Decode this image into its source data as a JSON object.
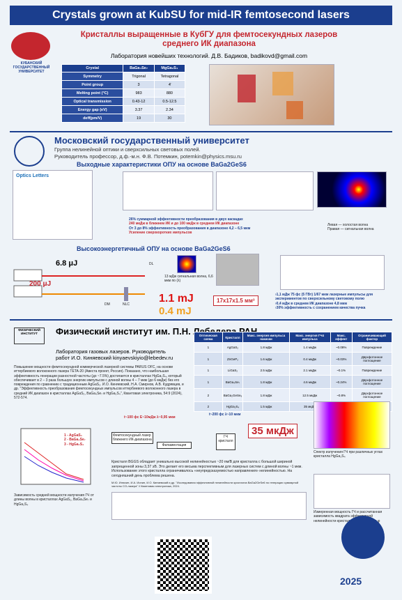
{
  "header": {
    "title": "Crystals grown at KubSU for mid-IR femtosecond lasers"
  },
  "kubsu": {
    "logo": "КУБАНСКИЙ ГОСУДАРСТВЕННЫЙ УНИВЕРСИТЕТ",
    "title": "Кристаллы выращенные в КубГУ для фемтосекундных лазеров среднего ИК диапазона",
    "lab": "Лаборатория новейших технологий. Д.В. Бадиков, badikovd@gmail.com",
    "table": {
      "header": [
        "Crystal",
        "BaGa₄Se₇",
        "MgGa₂S₄"
      ],
      "rows": [
        [
          "Symmetry",
          "Trigonal",
          "Tetragonal"
        ],
        [
          "Point group",
          "3",
          "4̄"
        ],
        [
          "Melting point (°C)",
          "983",
          "880"
        ],
        [
          "Optical transmission",
          "0.43-12",
          "0.5-12.5"
        ],
        [
          "Energy gap (eV)",
          "3.37",
          "2.34"
        ],
        [
          "deff(pm/V)",
          "19",
          "30"
        ]
      ]
    }
  },
  "msu": {
    "title": "Московский государственный университет",
    "subtitle": "Группа нелинейной оптики и сверхсильных световых полей.",
    "head": "Руководитель профессор, д.ф.-м.н. Ф.В. Потемкин, potemkin@physics.msu.ru",
    "section1": "Выходные характеристики ОПУ на основе BaGa2GeS6",
    "journal": "Optics Letters",
    "bullets": [
      "26% суммарной эффективности преобразования в двух каскадах",
      "240 мкДж в ближнем ИК и до 100 мкДж в среднем ИК диапазоне",
      "От 3 до 8% эффективность преобразования в диапазоне 4,2 – 6,5 мкм",
      "Усиление сверхкоротких импульсов"
    ],
    "beam_note": "Левая — холостая волна\nПравая — сигнальная волна",
    "section2": "Высокоэнергетичный ОПУ на основе BaGa2GeS6",
    "labels": {
      "e1": "6.8 μJ",
      "e2": "200 μJ",
      "e3": "1.1 mJ",
      "e4": "0.4 mJ",
      "size": "17x17x1.5 мм³",
      "dl": "DL",
      "dm": "DM",
      "nlc": "NLC",
      "signal": "13 мДж сигнальная волна, 6,6 мкм по (λ)"
    },
    "notes": "›1,1 мДж 75 фс (5 ГВт) 1/67 мкм лазерные импульсы для экспериментов по сверхсильному световому полю\n›0,4 мДж в среднем ИК диапазоне 4,8 мкм\n›30% эффективность с сохранением качества пучка"
  },
  "fian": {
    "logo": "ФИЗИЧЕСКИЙ ИНСТИТУТ",
    "title": "Физический институт им. П.Н. Лебедева РАН",
    "lab": "Лаборатория газовых лазеров. Руководитель работ И.О. Киняевский kinyaevskiyio@lebedev.ru",
    "text": "Повышение мощности фемтосекундной коммерческой лазерной системы PARUS OFC, на основе иттербиевого волоконного лазера TETA-20 (Авеста проект, Россия). Показано, что наибольшая эффективность генерации разностной частоты (до ~7.5%) достигается в кристаллах HgGa₂S₄, который обеспечивает в 2 – 3 раза большую энергию импульсов с длиной волны 4 – 7 мкм (до 6 мкДж) без его повреждения по сравнению с традиционным AgGaS₂. И.О. Киняевский, Н.А. Смирнов, А.В. Кудрявцев, и др. \"Эффективность преобразования фемтосекундных импульсов иттербиевого волоконного лазера в средний ИК диапазон в кристаллах AgGaS₂, BaGa₄Se₇ и HgGa₂S₄\", Квантовая электроника, 54:9 (2024), 572-574.",
    "table": {
      "header": [
        "Оптическая схема",
        "Кристалл",
        "Макс. энергия импульса накачки",
        "Макс. энергия ГЧ4 импульса",
        "Макс. эффект",
        "Ограничивающий фактор"
      ],
      "rows": [
        [
          "1",
          "AgGaS₂",
          "1.8 мДж",
          "1.4 мкДж",
          "~0.08%",
          "Повреждение"
        ],
        [
          "1",
          "ZnGeP₂",
          "1.6 мДж",
          "0.4 мкДж",
          "~0.03%",
          "Двухфотонное поглощение"
        ],
        [
          "1",
          "LiGaS₂",
          "2.5 мДж",
          "2.1 мкДж",
          "~0.1%",
          "Повреждение"
        ],
        [
          "1",
          "BaGa₄Se₇",
          "1.8 мДж",
          "4.6 мкДж",
          "~0.24%",
          "Двухфотонное поглощение"
        ],
        [
          "2",
          "BaGa₂GeSe₆",
          "1.8 мДж",
          "12.5 мкДж",
          "~0.8%",
          "Двухфотонное поглощение"
        ],
        [
          "2",
          "HgGa₂S₄",
          "1.5 мДж",
          "35 мкДж",
          "~2.8%",
          "Не определено"
        ]
      ]
    },
    "legend": [
      "1 - AgGaS₂",
      "2 - BaGa₄Se₇",
      "3 - HgGa₂S₄"
    ],
    "plot_caption": "Зависимость средней мощности излучения ГЧ от длины волны в кристаллах AgGaS₂, BaGa₄Se₇ и HgGa₂S₄",
    "pulse1": "t~100 фс E~10мДж λ~0,95 мкм",
    "pulse2": "t~200 фс λ~10 мкм",
    "box1": "Фемтосекундный лазер ближнего ИК-диапазона",
    "box2": "Филаментация",
    "box3": "ГЧ кристалл",
    "big": "35 мкДж",
    "spec_caption": "Спектр излучения ГЧ при различных углах кристалла HgGa₂S₄",
    "text2": "Кристалл BGGS обладает уникально высокой нелинейностью ~20 пм/В для кристалла с большой шириной запрещенной зоны 3,37 эВ. Это делает его весьма перспективным для лазерных систем с длиной волны ~1 мкм. Использование этого кристалла ограничивалось «неупредсказуемостью направления» нелинейностью. На сегодняшний день проблема решена.",
    "ref": "М.Ю. Илюхин, И.А. Ионин, И.О. Киняевский и др. \"Исследования эффективной нелинейности кристалла BaGa2GeSe6 по генерации суммарной частоты CO-лазера\" // Квантовая электроника, 2024.",
    "harm_caption": "Измеренная мощность ГЧ и рассчитанная зависимость квадрата эффективной нелинейности кристалла BBGS от угла φ"
  },
  "footer": {
    "year": "2025"
  }
}
